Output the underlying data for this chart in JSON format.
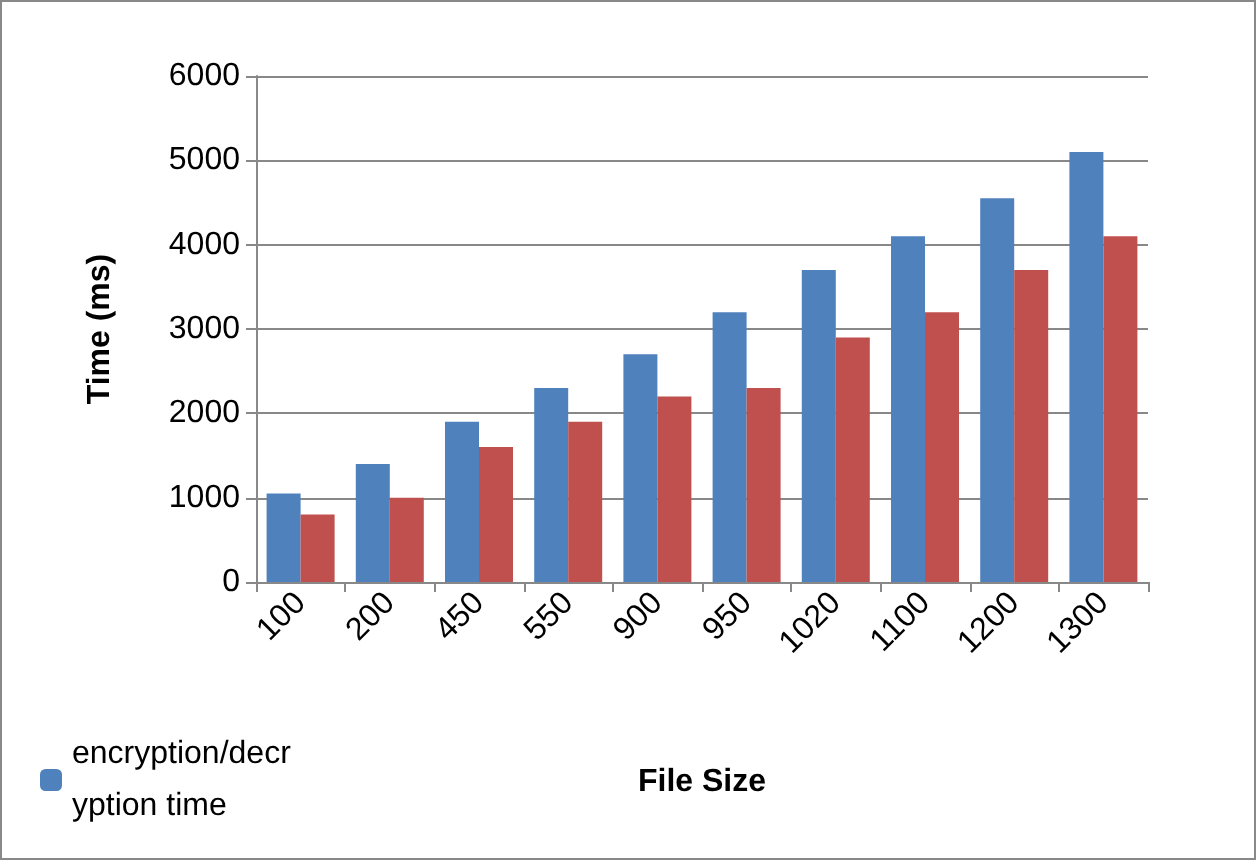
{
  "chart_data": {
    "type": "bar",
    "xlabel": "File Size",
    "ylabel": "Time (ms)",
    "categories": [
      "100",
      "200",
      "450",
      "550",
      "900",
      "950",
      "1020",
      "1100",
      "1200",
      "1300"
    ],
    "series": [
      {
        "name": "encryption/decryption time",
        "color": "#4f81bd",
        "values": [
          1050,
          1400,
          1900,
          2300,
          2700,
          3200,
          3700,
          4100,
          4550,
          5100
        ]
      },
      {
        "color": "#c0504d",
        "values": [
          800,
          1000,
          1600,
          1900,
          2200,
          2300,
          2900,
          3200,
          3700,
          4100
        ]
      }
    ],
    "ylim": [
      0,
      6000
    ],
    "yticks": [
      0,
      1000,
      2000,
      3000,
      4000,
      5000,
      6000
    ],
    "grid": "y",
    "legend": "bottom left"
  }
}
